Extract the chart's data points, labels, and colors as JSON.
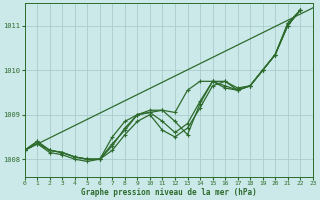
{
  "title": "Graphe pression niveau de la mer (hPa)",
  "background_color": "#cce9e9",
  "grid_color": "#aacccc",
  "line_color": "#2d6b2d",
  "xlim": [
    0,
    23
  ],
  "ylim": [
    1007.6,
    1011.5
  ],
  "yticks": [
    1008,
    1009,
    1010,
    1011
  ],
  "xticks": [
    0,
    1,
    2,
    3,
    4,
    5,
    6,
    7,
    8,
    9,
    10,
    11,
    12,
    13,
    14,
    15,
    16,
    17,
    18,
    19,
    20,
    21,
    22,
    23
  ],
  "straight_line": [
    [
      0,
      23
    ],
    [
      1008.2,
      1011.4
    ]
  ],
  "series": [
    [
      1008.2,
      1008.35,
      1008.2,
      1008.15,
      1008.05,
      1008.0,
      1008.0,
      1008.3,
      1008.7,
      1009.0,
      1009.05,
      1009.1,
      1008.85,
      1008.55,
      1009.25,
      1009.75,
      1009.75,
      1009.6,
      1009.65,
      1010.0,
      1010.35,
      1011.05,
      1011.35
    ],
    [
      1008.2,
      1008.35,
      1008.15,
      1008.1,
      1008.0,
      1007.95,
      1008.0,
      1008.2,
      1008.55,
      1008.85,
      1009.0,
      1008.65,
      1008.5,
      1008.7,
      1009.15,
      1009.65,
      1009.75,
      1009.55,
      1009.65,
      1010.0,
      1010.35,
      1011.0,
      1011.35
    ],
    [
      1008.2,
      1008.4,
      1008.2,
      1008.15,
      1008.05,
      1008.0,
      1008.0,
      1008.5,
      1008.85,
      1009.0,
      1009.1,
      1009.1,
      1009.05,
      1009.55,
      1009.75,
      1009.75,
      1009.6,
      1009.55,
      1009.65,
      1010.0,
      1010.35,
      1011.05,
      1011.35
    ],
    [
      1008.2,
      1008.4,
      1008.2,
      1008.15,
      1008.05,
      1008.0,
      1008.0,
      1008.35,
      1008.65,
      1009.0,
      1009.05,
      1008.85,
      1008.6,
      1008.8,
      1009.3,
      1009.75,
      1009.65,
      1009.55,
      1009.65,
      1010.0,
      1010.35,
      1011.0,
      1011.35
    ]
  ]
}
